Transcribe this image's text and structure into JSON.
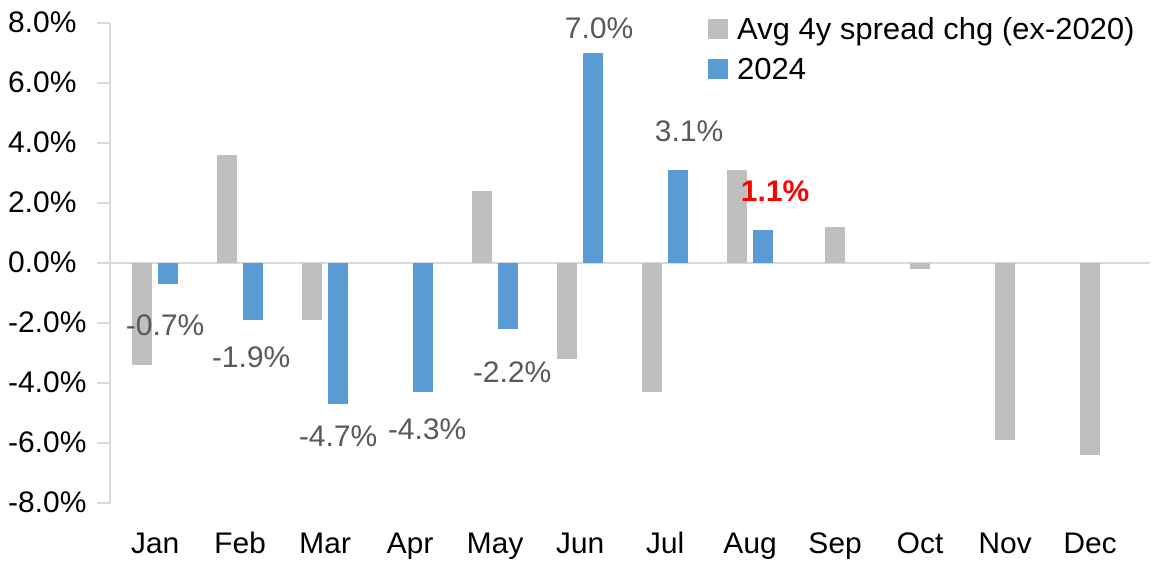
{
  "chart_data": {
    "type": "bar",
    "title": "",
    "categories": [
      "Jan",
      "Feb",
      "Mar",
      "Apr",
      "May",
      "Jun",
      "Jul",
      "Aug",
      "Sep",
      "Oct",
      "Nov",
      "Dec"
    ],
    "series": [
      {
        "name": "Avg 4y spread chg (ex-2020)",
        "color": "#bfbfbf",
        "values": [
          -3.4,
          3.6,
          -1.9,
          0.0,
          2.4,
          -3.2,
          -4.3,
          3.1,
          1.2,
          -0.2,
          -5.9,
          -6.4
        ]
      },
      {
        "name": "2024",
        "color": "#5b9bd5",
        "values": [
          -0.7,
          -1.9,
          -4.7,
          -4.3,
          -2.2,
          7.0,
          3.1,
          1.1,
          null,
          null,
          null,
          null
        ]
      }
    ],
    "data_labels": {
      "series": "2024",
      "labels": [
        "-0.7%",
        "-1.9%",
        "-4.7%",
        "-4.3%",
        "-2.2%",
        "7.0%",
        "3.1%",
        "1.1%"
      ],
      "default_color": "#595959",
      "highlight": {
        "index": 7,
        "text": "1.1%",
        "color": "#ff0000",
        "bold": true
      }
    },
    "y_axis": {
      "min": -8,
      "max": 8,
      "step": 2,
      "tick_labels": [
        "8.0%",
        "6.0%",
        "4.0%",
        "2.0%",
        "0.0%",
        "-2.0%",
        "-4.0%",
        "-6.0%",
        "-8.0%"
      ],
      "format": "percent_1dp"
    },
    "x_axis": {
      "tick_labels": [
        "Jan",
        "Feb",
        "Mar",
        "Apr",
        "May",
        "Jun",
        "Jul",
        "Aug",
        "Sep",
        "Oct",
        "Nov",
        "Dec"
      ]
    },
    "legend": {
      "position": "top-right",
      "entries": [
        {
          "label": "Avg 4y spread chg (ex-2020)",
          "color": "#bfbfbf"
        },
        {
          "label": "2024",
          "color": "#5b9bd5"
        }
      ]
    },
    "grid": "zero-line-only",
    "axis_line_color": "#d9d9d9"
  }
}
